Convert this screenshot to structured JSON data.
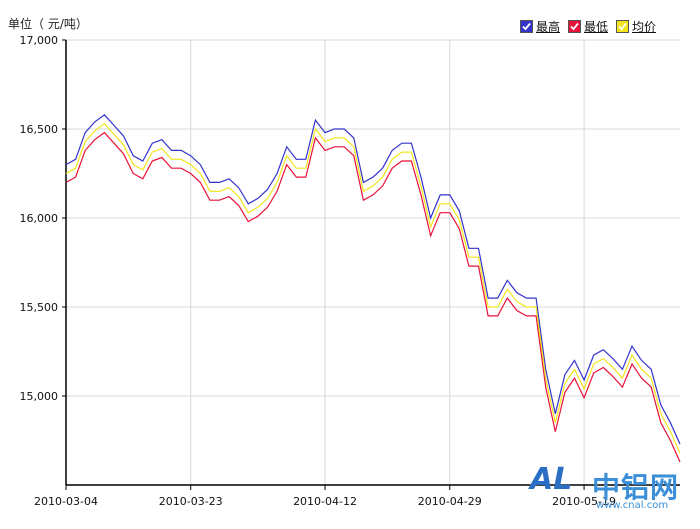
{
  "header": {
    "unit_label": "单位（ 元/吨）"
  },
  "legend": [
    {
      "label": "最高",
      "color": "#3333cc",
      "checked": true
    },
    {
      "label": "最低",
      "color": "#e8113a",
      "checked": true
    },
    {
      "label": "均价",
      "color": "#f2e51a",
      "checked": true
    }
  ],
  "watermark": {
    "logo": "AL",
    "name": "中铝网",
    "url": "www.cnal.com"
  },
  "chart_data": {
    "type": "line",
    "title": "",
    "xlabel": "",
    "ylabel": "单位（ 元/吨）",
    "ylim": [
      14500,
      17000
    ],
    "yticks": [
      15000,
      15500,
      16000,
      16500,
      17000
    ],
    "ytick_labels": [
      "15,000",
      "15,500",
      "16,000",
      "16,500",
      "17,000"
    ],
    "xtick_labels": [
      {
        "label": "2010-03-04",
        "index": 0
      },
      {
        "label": "2010-03-23",
        "index": 13
      },
      {
        "label": "2010-04-12",
        "index": 27
      },
      {
        "label": "2010-04-29",
        "index": 40
      },
      {
        "label": "2010-05-19",
        "index": 54
      }
    ],
    "grid": true,
    "legend_position": "top-right",
    "series": [
      {
        "name": "最高",
        "color": "#3333cc",
        "values": [
          16300,
          16330,
          16480,
          16540,
          16580,
          16520,
          16460,
          16350,
          16320,
          16420,
          16440,
          16380,
          16380,
          16350,
          16300,
          16200,
          16200,
          16220,
          16170,
          16080,
          16110,
          16160,
          16250,
          16400,
          16330,
          16330,
          16550,
          16480,
          16500,
          16500,
          16450,
          16200,
          16230,
          16280,
          16380,
          16420,
          16420,
          16230,
          16000,
          16130,
          16130,
          16040,
          15830,
          15830,
          15550,
          15550,
          15650,
          15580,
          15550,
          15550,
          15150,
          14900,
          15120,
          15200,
          15090,
          15230,
          15260,
          15210,
          15150,
          15280,
          15200,
          15150,
          14950,
          14850,
          14730
        ]
      },
      {
        "name": "最低",
        "color": "#e8113a",
        "values": [
          16200,
          16230,
          16380,
          16440,
          16480,
          16420,
          16360,
          16250,
          16220,
          16320,
          16340,
          16280,
          16280,
          16250,
          16200,
          16100,
          16100,
          16120,
          16070,
          15980,
          16010,
          16060,
          16150,
          16300,
          16230,
          16230,
          16450,
          16380,
          16400,
          16400,
          16350,
          16100,
          16130,
          16180,
          16280,
          16320,
          16320,
          16130,
          15900,
          16030,
          16030,
          15940,
          15730,
          15730,
          15450,
          15450,
          15550,
          15480,
          15450,
          15450,
          15050,
          14800,
          15020,
          15100,
          14990,
          15130,
          15160,
          15110,
          15050,
          15180,
          15100,
          15050,
          14850,
          14750,
          14630
        ]
      },
      {
        "name": "均价",
        "color": "#f2e51a",
        "values": [
          16250,
          16280,
          16430,
          16490,
          16530,
          16470,
          16410,
          16300,
          16270,
          16370,
          16390,
          16330,
          16330,
          16300,
          16250,
          16150,
          16150,
          16170,
          16120,
          16030,
          16060,
          16110,
          16200,
          16350,
          16280,
          16280,
          16500,
          16430,
          16450,
          16450,
          16400,
          16150,
          16180,
          16230,
          16330,
          16370,
          16370,
          16180,
          15950,
          16080,
          16080,
          15990,
          15780,
          15780,
          15500,
          15500,
          15600,
          15530,
          15500,
          15500,
          15100,
          14850,
          15070,
          15150,
          15040,
          15180,
          15210,
          15160,
          15100,
          15230,
          15150,
          15100,
          14900,
          14800,
          14680
        ]
      }
    ]
  }
}
